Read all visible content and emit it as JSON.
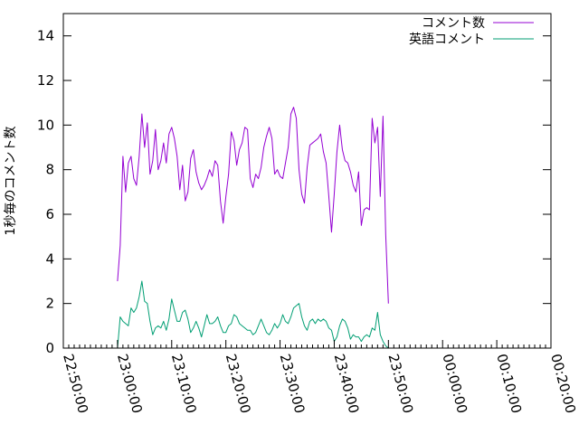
{
  "chart_data": {
    "type": "line",
    "ylabel": "1秒毎のコメント数",
    "xlabel": "",
    "x_axis": {
      "kind": "time",
      "ticks": [
        "22:50:00",
        "23:00:00",
        "23:10:00",
        "23:20:00",
        "23:30:00",
        "23:40:00",
        "23:50:00",
        "00:00:00",
        "00:10:00",
        "00:20:00"
      ],
      "minor_ticks_per_major": 10
    },
    "y_axis": {
      "ticks": [
        "0",
        "2",
        "4",
        "6",
        "8",
        "10",
        "12",
        "14"
      ],
      "ylim": [
        0,
        15
      ]
    },
    "legend_position": "top-right",
    "grid": false,
    "x_step_minutes": 0.5,
    "series": [
      {
        "name": "コメント数",
        "color": "#9400d3",
        "x_start": "23:00:00",
        "values": [
          3.0,
          4.6,
          8.6,
          7.0,
          8.3,
          8.6,
          7.6,
          7.3,
          8.6,
          10.5,
          9.0,
          10.1,
          7.8,
          8.4,
          9.8,
          8.0,
          8.4,
          9.2,
          8.3,
          9.6,
          9.9,
          9.4,
          8.6,
          7.1,
          8.2,
          6.6,
          7.0,
          8.5,
          8.9,
          7.9,
          7.4,
          7.1,
          7.3,
          7.6,
          8.0,
          7.7,
          8.4,
          8.2,
          6.6,
          5.6,
          6.8,
          7.8,
          9.7,
          9.3,
          8.2,
          8.9,
          9.2,
          9.9,
          9.8,
          7.6,
          7.2,
          7.8,
          7.6,
          8.1,
          9.0,
          9.5,
          9.9,
          9.4,
          7.8,
          8.0,
          7.7,
          7.6,
          8.3,
          9.0,
          10.5,
          10.8,
          10.3,
          8.0,
          6.9,
          6.5,
          8.1,
          9.1,
          9.2,
          9.3,
          9.4,
          9.6,
          8.8,
          8.3,
          6.8,
          5.2,
          6.9,
          8.8,
          10.0,
          8.9,
          8.4,
          8.3,
          7.9,
          7.3,
          7.0,
          7.9,
          5.5,
          6.2,
          6.3,
          6.2,
          10.3,
          9.2,
          9.9,
          6.8,
          10.4,
          5.1,
          2.0
        ]
      },
      {
        "name": "英語コメント",
        "color": "#009e73",
        "x_start": "23:00:00",
        "values": [
          0.0,
          1.4,
          1.2,
          1.1,
          1.0,
          1.8,
          1.6,
          1.8,
          2.3,
          3.0,
          2.1,
          2.0,
          1.2,
          0.6,
          0.9,
          1.0,
          0.9,
          1.2,
          0.8,
          1.3,
          2.2,
          1.7,
          1.2,
          1.2,
          1.6,
          1.7,
          1.3,
          0.7,
          0.9,
          1.2,
          0.9,
          0.5,
          1.0,
          1.5,
          1.1,
          1.1,
          1.2,
          1.4,
          1.0,
          0.7,
          0.7,
          1.0,
          1.1,
          1.5,
          1.4,
          1.1,
          1.0,
          0.9,
          0.8,
          0.8,
          0.6,
          0.7,
          1.0,
          1.3,
          1.0,
          0.7,
          0.6,
          0.8,
          1.1,
          0.9,
          1.1,
          1.5,
          1.2,
          1.1,
          1.4,
          1.8,
          1.9,
          2.0,
          1.4,
          1.0,
          0.8,
          1.2,
          1.3,
          1.1,
          1.3,
          1.2,
          1.3,
          1.2,
          0.9,
          0.8,
          0.3,
          0.5,
          1.0,
          1.3,
          1.2,
          0.9,
          0.4,
          0.6,
          0.5,
          0.5,
          0.3,
          0.5,
          0.6,
          0.5,
          0.9,
          0.8,
          1.6,
          0.6,
          0.3,
          0.1,
          0.0
        ]
      }
    ]
  }
}
